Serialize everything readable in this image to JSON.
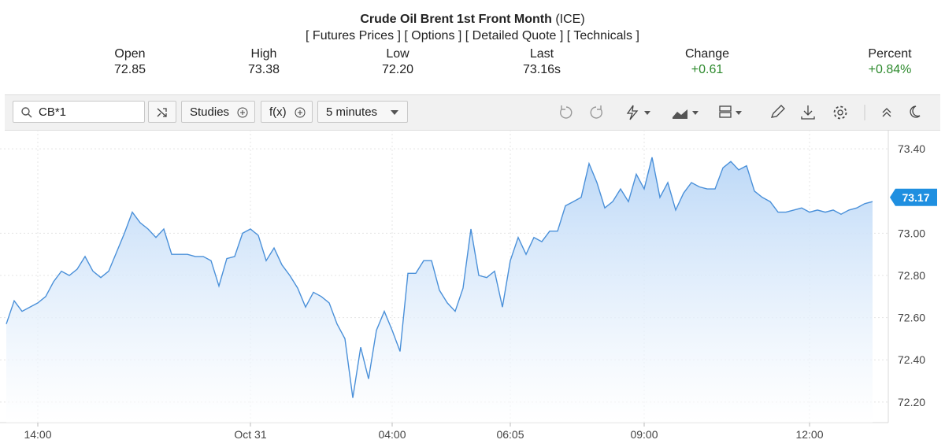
{
  "header": {
    "title": "Crude Oil Brent 1st Front Month",
    "exchange": "(ICE)",
    "links": [
      "[ Futures Prices ]",
      "[ Options ]",
      "[ Detailed Quote ]",
      "[ Technicals ]"
    ]
  },
  "quote": [
    {
      "label": "Open",
      "value": "72.85"
    },
    {
      "label": "High",
      "value": "73.38"
    },
    {
      "label": "Low",
      "value": "72.20"
    },
    {
      "label": "Last",
      "value": "73.16s"
    },
    {
      "label": "Change",
      "value": "+0.61"
    },
    {
      "label": "Percent",
      "value": "+0.84%"
    }
  ],
  "toolbar": {
    "symbol": "CB*1",
    "studies": "Studies",
    "fx": "f(x)",
    "interval": "5 minutes"
  },
  "chart_data": {
    "type": "line",
    "color": "#4a90d9",
    "grid": true,
    "categories": [
      null,
      null,
      null,
      null,
      "14:00",
      null,
      null,
      null,
      null,
      null,
      null,
      null,
      null,
      null,
      null,
      null,
      null,
      null,
      null,
      null,
      null,
      null,
      null,
      null,
      null,
      null,
      null,
      null,
      null,
      null,
      null,
      "Oct 31",
      null,
      null,
      null,
      null,
      null,
      null,
      null,
      null,
      null,
      null,
      null,
      null,
      null,
      null,
      null,
      null,
      null,
      "04:00",
      null,
      null,
      null,
      null,
      null,
      null,
      null,
      null,
      null,
      null,
      null,
      null,
      null,
      null,
      "06:05",
      null,
      null,
      null,
      null,
      null,
      null,
      null,
      null,
      null,
      null,
      null,
      null,
      null,
      null,
      null,
      null,
      "09:00",
      null,
      null,
      null,
      null,
      null,
      null,
      null,
      null,
      null,
      null,
      null,
      null,
      null,
      null,
      null,
      null,
      null,
      null,
      null,
      null,
      "12:00",
      null,
      null,
      null,
      null,
      null,
      null,
      null,
      null
    ],
    "values": [
      72.57,
      72.68,
      72.63,
      72.65,
      72.67,
      72.7,
      72.77,
      72.82,
      72.8,
      72.83,
      72.89,
      72.82,
      72.79,
      72.82,
      72.91,
      73.0,
      73.1,
      73.05,
      73.02,
      72.98,
      73.02,
      72.9,
      72.9,
      72.9,
      72.89,
      72.89,
      72.87,
      72.75,
      72.88,
      72.89,
      73.0,
      73.02,
      72.99,
      72.87,
      72.93,
      72.85,
      72.8,
      72.74,
      72.65,
      72.72,
      72.7,
      72.67,
      72.57,
      72.5,
      72.22,
      72.46,
      72.31,
      72.54,
      72.63,
      72.54,
      72.44,
      72.81,
      72.81,
      72.87,
      72.87,
      72.73,
      72.67,
      72.63,
      72.74,
      73.02,
      72.8,
      72.79,
      72.82,
      72.65,
      72.87,
      72.98,
      72.9,
      72.98,
      72.96,
      73.01,
      73.01,
      73.13,
      73.15,
      73.17,
      73.33,
      73.24,
      73.12,
      73.15,
      73.21,
      73.15,
      73.28,
      73.21,
      73.36,
      73.17,
      73.24,
      73.11,
      73.19,
      73.24,
      73.22,
      73.21,
      73.21,
      73.31,
      73.34,
      73.3,
      73.32,
      73.2,
      73.17,
      73.15,
      73.1,
      73.1,
      73.11,
      73.12,
      73.1,
      73.11,
      73.1,
      73.11,
      73.09,
      73.11,
      73.12,
      73.14,
      73.15
    ],
    "ylim": [
      72.11,
      73.49
    ],
    "yticks": [
      {
        "value": 72.2,
        "label": "72.20"
      },
      {
        "value": 72.4,
        "label": "72.40"
      },
      {
        "value": 72.6,
        "label": "72.60"
      },
      {
        "value": 72.8,
        "label": "72.80"
      },
      {
        "value": 73.0,
        "label": "73.00"
      },
      {
        "value": 73.4,
        "label": "73.40"
      }
    ],
    "last_price": {
      "value": 73.17,
      "label": "73.17"
    }
  }
}
